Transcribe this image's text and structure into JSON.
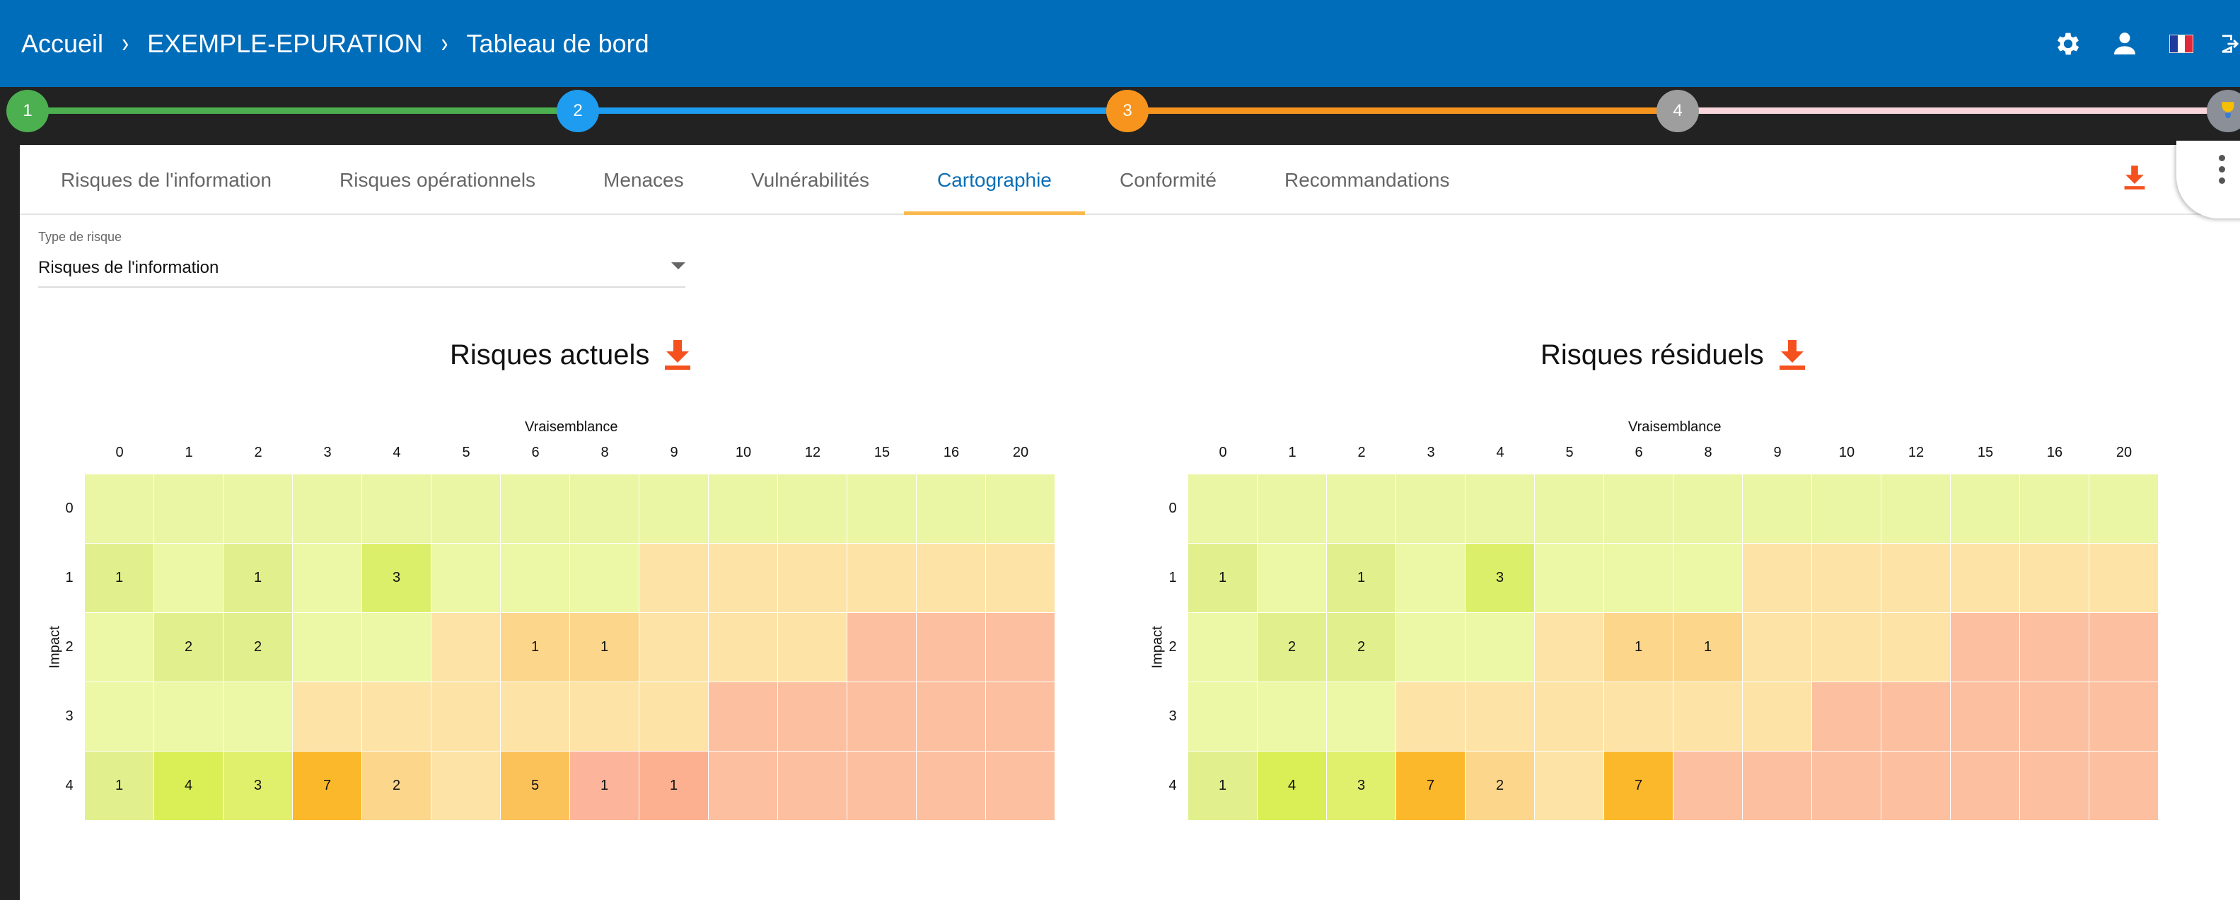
{
  "header": {
    "breadcrumb": [
      "Accueil",
      "EXEMPLE-EPURATION",
      "Tableau de bord"
    ],
    "icons": [
      "gear-icon",
      "user-icon",
      "flag-fr-icon",
      "logout-icon"
    ]
  },
  "stepper": {
    "steps": [
      {
        "label": "1",
        "color": "#4caf50"
      },
      {
        "label": "2",
        "color": "#1e9cef"
      },
      {
        "label": "3",
        "color": "#f7941d"
      },
      {
        "label": "4",
        "color": "#9e9e9e"
      }
    ],
    "segment_colors": [
      "#4caf50",
      "#1e9cef",
      "#f7941d",
      "#f8d6dc"
    ]
  },
  "tabs": [
    {
      "label": "Risques de l'information",
      "active": false
    },
    {
      "label": "Risques opérationnels",
      "active": false
    },
    {
      "label": "Menaces",
      "active": false
    },
    {
      "label": "Vulnérabilités",
      "active": false
    },
    {
      "label": "Cartographie",
      "active": true
    },
    {
      "label": "Conformité",
      "active": false
    },
    {
      "label": "Recommandations",
      "active": false
    }
  ],
  "filter": {
    "label": "Type de risque",
    "value": "Risques de l'information"
  },
  "matrices": [
    {
      "title": "Risques actuels",
      "x_axis_title": "Vraisemblance",
      "y_axis_title": "Impact",
      "columns": [
        "0",
        "1",
        "2",
        "3",
        "4",
        "5",
        "6",
        "8",
        "9",
        "10",
        "12",
        "15",
        "16",
        "20"
      ],
      "rows": [
        "0",
        "1",
        "2",
        "3",
        "4"
      ],
      "values": [
        [
          "",
          "",
          "",
          "",
          "",
          "",
          "",
          "",
          "",
          "",
          "",
          "",
          "",
          ""
        ],
        [
          "1",
          "",
          "1",
          "",
          "3",
          "",
          "",
          "",
          "",
          "",
          "",
          "",
          "",
          ""
        ],
        [
          "",
          "2",
          "2",
          "",
          "",
          "",
          "1",
          "1",
          "",
          "",
          "",
          "",
          "",
          ""
        ],
        [
          "",
          "",
          "",
          "",
          "",
          "",
          "",
          "",
          "",
          "",
          "",
          "",
          "",
          ""
        ],
        [
          "1",
          "4",
          "3",
          "7",
          "2",
          "",
          "5",
          "1",
          "1",
          "",
          "",
          "",
          "",
          ""
        ]
      ],
      "colors": [
        [
          "#eaf6a3",
          "#eaf6a3",
          "#eaf6a3",
          "#eaf6a3",
          "#eaf6a3",
          "#eaf6a3",
          "#eaf6a3",
          "#eaf6a3",
          "#eaf6a3",
          "#eaf6a3",
          "#eaf6a3",
          "#eaf6a3",
          "#eaf6a3",
          "#eaf6a3"
        ],
        [
          "#e1f08c",
          "#ecf8a5",
          "#e1f08c",
          "#ecf8a5",
          "#dcef6a",
          "#ecf8a5",
          "#ecf8a5",
          "#ecf8a5",
          "#fde3a6",
          "#fde3a6",
          "#fde3a6",
          "#fde3a6",
          "#fde3a6",
          "#fde3a6"
        ],
        [
          "#ecf8a5",
          "#e1f08c",
          "#e1f08c",
          "#ecf8a5",
          "#ecf8a5",
          "#fde3a6",
          "#fcd68a",
          "#fcd68a",
          "#fde3a6",
          "#fde3a6",
          "#fde3a6",
          "#fcbfa0",
          "#fcbfa0",
          "#fcbfa0"
        ],
        [
          "#ecf8a5",
          "#ecf8a5",
          "#ecf8a5",
          "#fde3a6",
          "#fde3a6",
          "#fde3a6",
          "#fde3a6",
          "#fde3a6",
          "#fde3a6",
          "#fcbfa0",
          "#fcbfa0",
          "#fcbfa0",
          "#fcbfa0",
          "#fcbfa0"
        ],
        [
          "#e1f08c",
          "#d9ef55",
          "#e1f06c",
          "#fbb82b",
          "#fcd68a",
          "#fde3a6",
          "#fcc25a",
          "#fcb59b",
          "#fcb090",
          "#fcbfa0",
          "#fcbfa0",
          "#fcbfa0",
          "#fcbfa0",
          "#fcbfa0"
        ]
      ]
    },
    {
      "title": "Risques résiduels",
      "x_axis_title": "Vraisemblance",
      "y_axis_title": "Impact",
      "columns": [
        "0",
        "1",
        "2",
        "3",
        "4",
        "5",
        "6",
        "8",
        "9",
        "10",
        "12",
        "15",
        "16",
        "20"
      ],
      "rows": [
        "0",
        "1",
        "2",
        "3",
        "4"
      ],
      "values": [
        [
          "",
          "",
          "",
          "",
          "",
          "",
          "",
          "",
          "",
          "",
          "",
          "",
          "",
          ""
        ],
        [
          "1",
          "",
          "1",
          "",
          "3",
          "",
          "",
          "",
          "",
          "",
          "",
          "",
          "",
          ""
        ],
        [
          "",
          "2",
          "2",
          "",
          "",
          "",
          "1",
          "1",
          "",
          "",
          "",
          "",
          "",
          ""
        ],
        [
          "",
          "",
          "",
          "",
          "",
          "",
          "",
          "",
          "",
          "",
          "",
          "",
          "",
          ""
        ],
        [
          "1",
          "4",
          "3",
          "7",
          "2",
          "",
          "7",
          "",
          "",
          "",
          "",
          "",
          "",
          ""
        ]
      ],
      "colors": [
        [
          "#eaf6a3",
          "#eaf6a3",
          "#eaf6a3",
          "#eaf6a3",
          "#eaf6a3",
          "#eaf6a3",
          "#eaf6a3",
          "#eaf6a3",
          "#eaf6a3",
          "#eaf6a3",
          "#eaf6a3",
          "#eaf6a3",
          "#eaf6a3",
          "#eaf6a3"
        ],
        [
          "#e1f08c",
          "#ecf8a5",
          "#e1f08c",
          "#ecf8a5",
          "#dcef6a",
          "#ecf8a5",
          "#ecf8a5",
          "#ecf8a5",
          "#fde3a6",
          "#fde3a6",
          "#fde3a6",
          "#fde3a6",
          "#fde3a6",
          "#fde3a6"
        ],
        [
          "#ecf8a5",
          "#e1f08c",
          "#e1f08c",
          "#ecf8a5",
          "#ecf8a5",
          "#fde3a6",
          "#fcd68a",
          "#fcd68a",
          "#fde3a6",
          "#fde3a6",
          "#fde3a6",
          "#fcbfa0",
          "#fcbfa0",
          "#fcbfa0"
        ],
        [
          "#ecf8a5",
          "#ecf8a5",
          "#ecf8a5",
          "#fde3a6",
          "#fde3a6",
          "#fde3a6",
          "#fde3a6",
          "#fde3a6",
          "#fde3a6",
          "#fcbfa0",
          "#fcbfa0",
          "#fcbfa0",
          "#fcbfa0",
          "#fcbfa0"
        ],
        [
          "#e1f08c",
          "#d9ef55",
          "#e1f06c",
          "#fbb82b",
          "#fcd68a",
          "#fde3a6",
          "#fbb82b",
          "#fcbfa0",
          "#fcbfa0",
          "#fcbfa0",
          "#fcbfa0",
          "#fcbfa0",
          "#fcbfa0",
          "#fcbfa0"
        ]
      ]
    }
  ],
  "accent_color": "#f4511e"
}
